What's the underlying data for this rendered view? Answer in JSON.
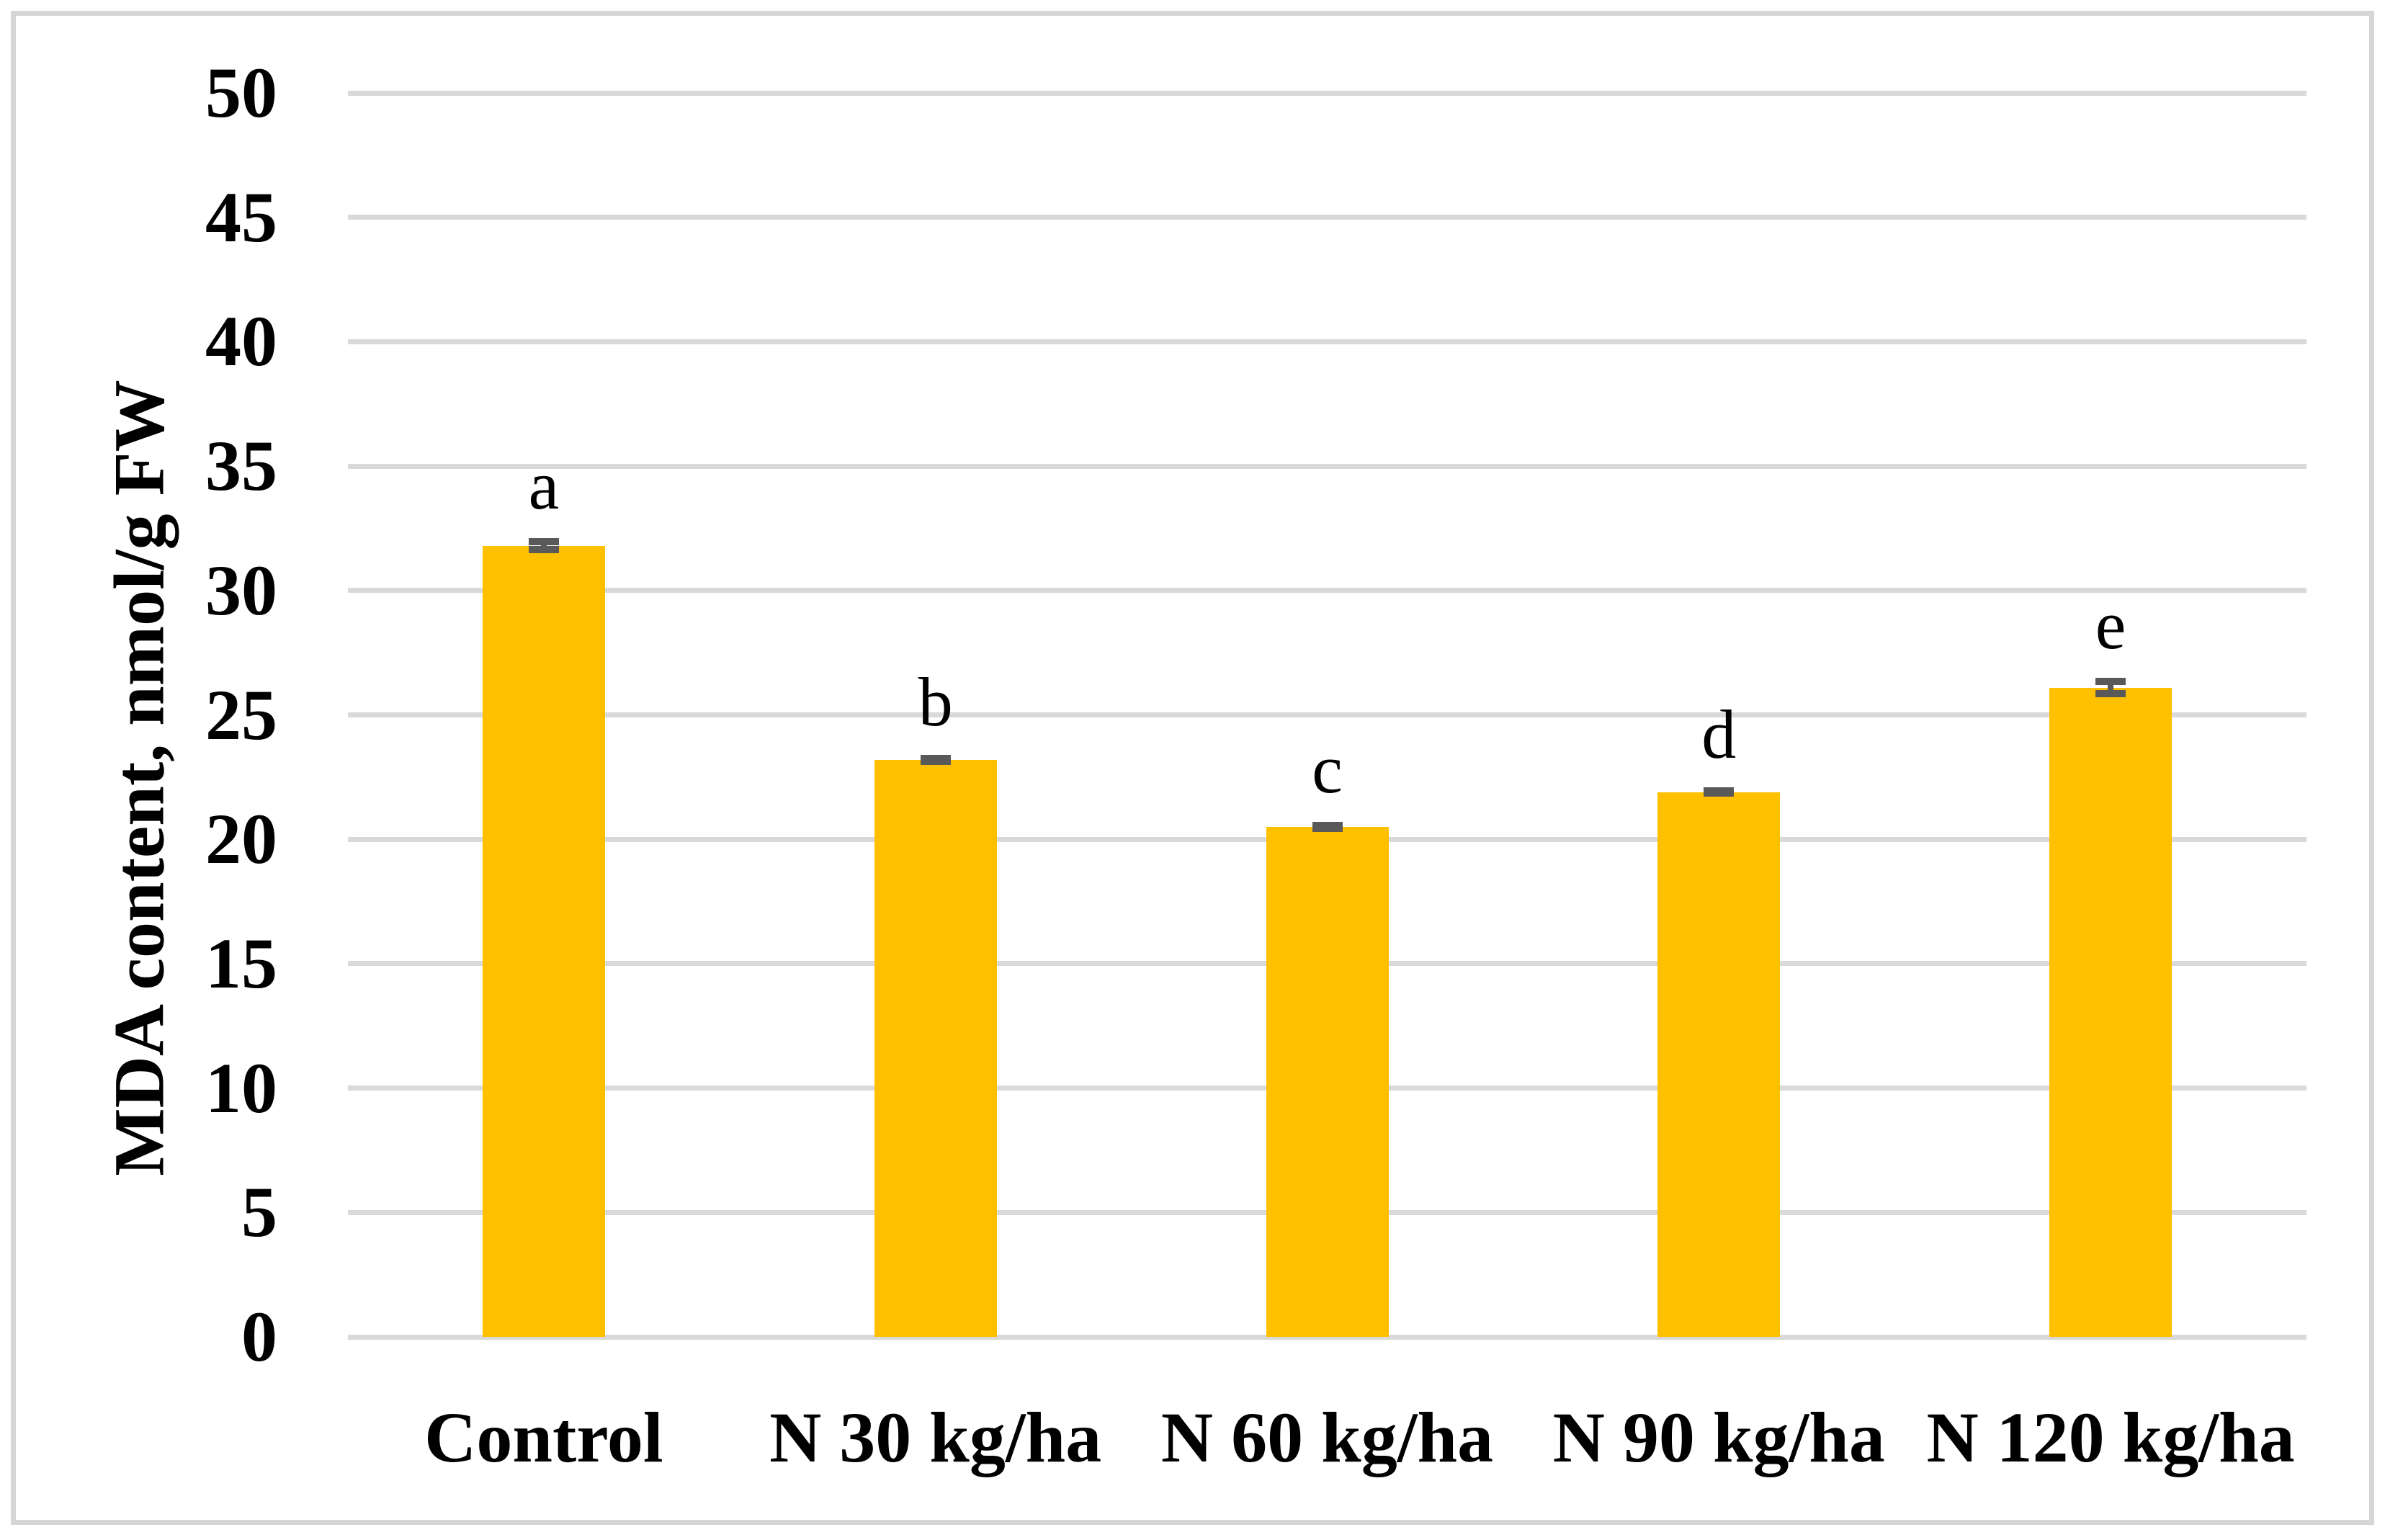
{
  "figure": {
    "background_color": "#ffffff",
    "border_color": "#d6d6d6"
  },
  "chart_data": {
    "type": "bar",
    "title": "",
    "xlabel": "",
    "ylabel": "MDA content, nmol/g FW",
    "ylim": [
      0,
      50
    ],
    "y_tick_step": 5,
    "y_ticks": [
      "0",
      "5",
      "10",
      "15",
      "20",
      "25",
      "30",
      "35",
      "40",
      "45",
      "50"
    ],
    "grid": "horizontal",
    "legend_position": "none",
    "bar_color": "#ffc000",
    "error_bar_color": "#595959",
    "gridline_color": "#d9d9d9",
    "categories": [
      "Control",
      "N 30 kg/ha",
      "N 60 kg/ha",
      "N 90 kg/ha",
      "N 120 kg/ha"
    ],
    "values": [
      31.8,
      23.2,
      20.5,
      21.9,
      26.1
    ],
    "errors": [
      0.3,
      0.2,
      0.2,
      0.2,
      0.4
    ],
    "significance_letters": [
      "a",
      "b",
      "c",
      "d",
      "e"
    ]
  }
}
